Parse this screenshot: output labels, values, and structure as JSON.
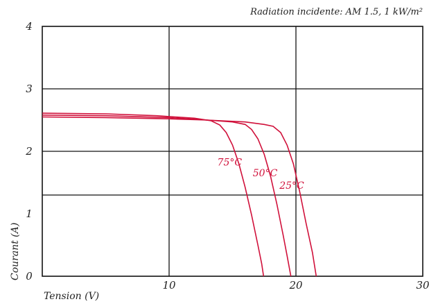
{
  "chart_data": {
    "type": "line",
    "annotation": "Radiation incidente: AM 1.5, 1 kW/m²",
    "xlabel": "Tension (V)",
    "ylabel": "Courant (A)",
    "xlim": [
      0,
      30
    ],
    "ylim": [
      0,
      4
    ],
    "x_ticks": [
      10,
      20,
      30
    ],
    "y_ticks": [
      0,
      1,
      2,
      3,
      4
    ],
    "y_tick_labels": [
      "0",
      "1",
      "2",
      "3",
      "4"
    ],
    "x_origin_label": "0",
    "x_gridlines": [
      10,
      20
    ],
    "y_gridlines": [
      1.3,
      2,
      3
    ],
    "grid": true,
    "curve_color": "#d0103a",
    "series": [
      {
        "name": "75°C",
        "label_at": [
          13.8,
          1.77
        ],
        "points": [
          [
            0,
            2.61
          ],
          [
            5,
            2.6
          ],
          [
            9,
            2.57
          ],
          [
            12,
            2.53
          ],
          [
            13.3,
            2.49
          ],
          [
            14,
            2.42
          ],
          [
            14.5,
            2.3
          ],
          [
            15,
            2.1
          ],
          [
            15.5,
            1.8
          ],
          [
            16,
            1.42
          ],
          [
            16.5,
            0.98
          ],
          [
            17,
            0.5
          ],
          [
            17.3,
            0.2
          ],
          [
            17.45,
            0.0
          ]
        ]
      },
      {
        "name": "50°C",
        "label_at": [
          16.6,
          1.6
        ],
        "points": [
          [
            0,
            2.58
          ],
          [
            5,
            2.57
          ],
          [
            10,
            2.54
          ],
          [
            13,
            2.5
          ],
          [
            15,
            2.47
          ],
          [
            16,
            2.43
          ],
          [
            16.5,
            2.35
          ],
          [
            17,
            2.2
          ],
          [
            17.5,
            1.95
          ],
          [
            18,
            1.6
          ],
          [
            18.5,
            1.15
          ],
          [
            19,
            0.65
          ],
          [
            19.3,
            0.33
          ],
          [
            19.6,
            0.0
          ]
        ]
      },
      {
        "name": "25°C",
        "label_at": [
          18.7,
          1.4
        ],
        "points": [
          [
            0,
            2.55
          ],
          [
            5,
            2.54
          ],
          [
            10,
            2.52
          ],
          [
            13,
            2.5
          ],
          [
            16,
            2.47
          ],
          [
            17.5,
            2.43
          ],
          [
            18.2,
            2.4
          ],
          [
            18.8,
            2.3
          ],
          [
            19.3,
            2.1
          ],
          [
            19.8,
            1.8
          ],
          [
            20.3,
            1.35
          ],
          [
            20.8,
            0.85
          ],
          [
            21.3,
            0.38
          ],
          [
            21.6,
            0.0
          ]
        ]
      }
    ]
  }
}
